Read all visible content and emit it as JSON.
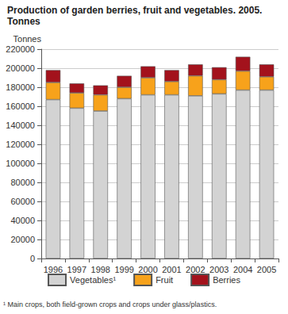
{
  "chart_data": {
    "type": "bar",
    "title": "Production of garden berries, fruit and vegetables. 2005.",
    "subtitle": "Tonnes",
    "y_label": "Tonnes",
    "annotation": "¹ Main crops, both field-grown crops and crops under glass/plastics.",
    "categories": [
      "1996",
      "1997",
      "1998",
      "1999",
      "2000",
      "2001",
      "2002",
      "2003",
      "2004",
      "2005"
    ],
    "series": [
      {
        "name": "Vegetables¹",
        "color": "#d3d3d3",
        "values": [
          167000,
          158000,
          155000,
          168000,
          172000,
          172000,
          171000,
          173000,
          177000,
          177000
        ]
      },
      {
        "name": "Fruit",
        "color": "#f7a21b",
        "values": [
          18000,
          16000,
          17000,
          12000,
          18000,
          14000,
          21000,
          15000,
          20000,
          14000
        ]
      },
      {
        "name": "Berries",
        "color": "#a3121c",
        "values": [
          13000,
          10000,
          10000,
          12000,
          12000,
          12000,
          12000,
          13000,
          15000,
          13000
        ]
      }
    ],
    "stacked": true,
    "ylim": [
      0,
      220000
    ],
    "yticks": [
      0,
      20000,
      40000,
      60000,
      80000,
      100000,
      120000,
      140000,
      160000,
      180000,
      200000,
      220000
    ],
    "grid": true,
    "legend": "bottom"
  }
}
